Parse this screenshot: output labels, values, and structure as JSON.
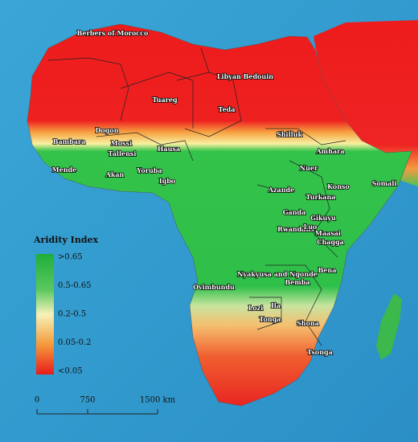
{
  "legend": {
    "title": "Aridity Index",
    "items": [
      ">0.65",
      "0.5-0.65",
      "0.2-0.5",
      "0.05-0.2",
      "<0.05"
    ]
  },
  "scale_bar": {
    "labels": [
      "0",
      "750",
      "1500 km"
    ]
  },
  "labels": [
    "Berbers of Morocco",
    "Libyan Bedouin",
    "Tuareg",
    "Teda",
    "Dogon",
    "Bambara",
    "Mossi",
    "Tallensi",
    "Hausa",
    "Shilluk",
    "Amhara",
    "Nuer",
    "Mende",
    "Akan",
    "Yoruba",
    "Igbo",
    "Azande",
    "Konso",
    "Somali",
    "Turkana",
    "Ganda",
    "Gikuyu",
    "Rwandans",
    "Luo",
    "Maasai",
    "Chagga",
    "Bena",
    "Nyakyusa and Ngonde",
    "Bemba",
    "Ovimbundu",
    "Lozi",
    "Ila",
    "Tonga",
    "Shona",
    "Tsonga"
  ]
}
